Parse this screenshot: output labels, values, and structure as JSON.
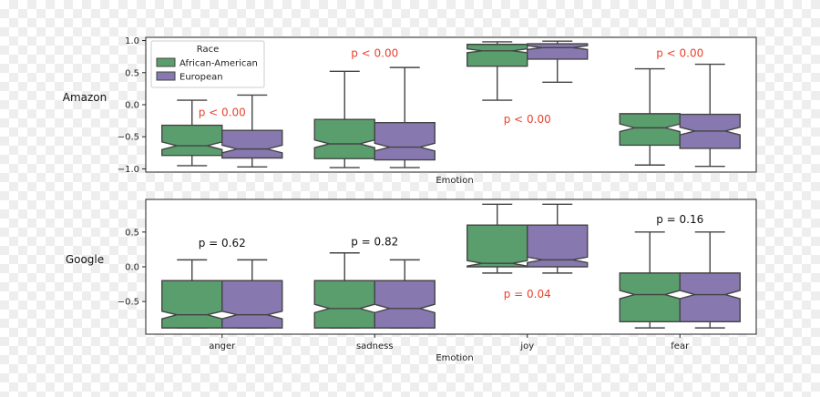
{
  "chart_data": {
    "type": "box",
    "xlabel": "Emotion",
    "categories": [
      "anger",
      "sadness",
      "joy",
      "fear"
    ],
    "legend": {
      "title": "Race",
      "placement": "top-left",
      "entries": [
        "African-American",
        "European"
      ]
    },
    "colors": {
      "African-American": "#5b9e6e",
      "European": "#8878b0",
      "significant": "#e8432e",
      "not_significant": "#111111"
    },
    "panels": [
      {
        "title": "Amazon",
        "ylim": [
          -1.05,
          1.05
        ],
        "yticks": [
          -1.0,
          -0.5,
          0.0,
          0.5,
          1.0
        ],
        "ytick_labels": [
          "−1.0",
          "−0.5",
          "0.0",
          "0.5",
          "1.0"
        ],
        "show_xtick_labels": false,
        "boxes": [
          {
            "category": "anger",
            "series": "African-American",
            "whislo": -0.95,
            "q1": -0.79,
            "med": -0.64,
            "q3": -0.32,
            "whishi": 0.07,
            "notch_lo": -0.7,
            "notch_hi": -0.58
          },
          {
            "category": "anger",
            "series": "European",
            "whislo": -0.97,
            "q1": -0.83,
            "med": -0.69,
            "q3": -0.4,
            "whishi": 0.15,
            "notch_lo": -0.75,
            "notch_hi": -0.63
          },
          {
            "category": "sadness",
            "series": "African-American",
            "whislo": -0.98,
            "q1": -0.84,
            "med": -0.61,
            "q3": -0.23,
            "whishi": 0.52,
            "notch_lo": -0.67,
            "notch_hi": -0.55
          },
          {
            "category": "sadness",
            "series": "European",
            "whislo": -0.98,
            "q1": -0.86,
            "med": -0.66,
            "q3": -0.28,
            "whishi": 0.58,
            "notch_lo": -0.72,
            "notch_hi": -0.6
          },
          {
            "category": "joy",
            "series": "African-American",
            "whislo": 0.07,
            "q1": 0.6,
            "med": 0.84,
            "q3": 0.94,
            "whishi": 0.98,
            "notch_lo": 0.81,
            "notch_hi": 0.87
          },
          {
            "category": "joy",
            "series": "European",
            "whislo": 0.35,
            "q1": 0.71,
            "med": 0.89,
            "q3": 0.95,
            "whishi": 0.99,
            "notch_lo": 0.86,
            "notch_hi": 0.92
          },
          {
            "category": "fear",
            "series": "African-American",
            "whislo": -0.94,
            "q1": -0.63,
            "med": -0.36,
            "q3": -0.14,
            "whishi": 0.56,
            "notch_lo": -0.42,
            "notch_hi": -0.3
          },
          {
            "category": "fear",
            "series": "European",
            "whislo": -0.96,
            "q1": -0.68,
            "med": -0.41,
            "q3": -0.15,
            "whishi": 0.63,
            "notch_lo": -0.47,
            "notch_hi": -0.35
          }
        ],
        "annotations": [
          {
            "category": "anger",
            "text": "p < 0.00",
            "y": -0.12,
            "significant": true
          },
          {
            "category": "sadness",
            "text": "p < 0.00",
            "y": 0.8,
            "significant": true
          },
          {
            "category": "joy",
            "text": "p < 0.00",
            "y": -0.23,
            "significant": true
          },
          {
            "category": "fear",
            "text": "p < 0.00",
            "y": 0.8,
            "significant": true
          }
        ]
      },
      {
        "title": "Google",
        "ylim": [
          -0.97,
          0.97
        ],
        "yticks": [
          -0.5,
          0.0,
          0.5
        ],
        "ytick_labels": [
          "−0.5",
          "0.0",
          "0.5"
        ],
        "show_xtick_labels": true,
        "boxes": [
          {
            "category": "anger",
            "series": "African-American",
            "whislo": -0.88,
            "q1": -0.88,
            "med": -0.69,
            "q3": -0.2,
            "whishi": 0.1,
            "notch_lo": -0.75,
            "notch_hi": -0.64
          },
          {
            "category": "anger",
            "series": "European",
            "whislo": -0.88,
            "q1": -0.88,
            "med": -0.69,
            "q3": -0.2,
            "whishi": 0.1,
            "notch_lo": -0.75,
            "notch_hi": -0.64
          },
          {
            "category": "sadness",
            "series": "African-American",
            "whislo": -0.88,
            "q1": -0.88,
            "med": -0.6,
            "q3": -0.2,
            "whishi": 0.2,
            "notch_lo": -0.66,
            "notch_hi": -0.54
          },
          {
            "category": "sadness",
            "series": "European",
            "whislo": -0.88,
            "q1": -0.88,
            "med": -0.6,
            "q3": -0.2,
            "whishi": 0.1,
            "notch_lo": -0.66,
            "notch_hi": -0.54
          },
          {
            "category": "joy",
            "series": "African-American",
            "whislo": -0.09,
            "q1": 0.0,
            "med": 0.05,
            "q3": 0.6,
            "whishi": 0.9,
            "notch_lo": 0.01,
            "notch_hi": 0.09
          },
          {
            "category": "joy",
            "series": "European",
            "whislo": -0.09,
            "q1": 0.0,
            "med": 0.1,
            "q3": 0.6,
            "whishi": 0.9,
            "notch_lo": 0.06,
            "notch_hi": 0.14
          },
          {
            "category": "fear",
            "series": "African-American",
            "whislo": -0.88,
            "q1": -0.79,
            "med": -0.4,
            "q3": -0.09,
            "whishi": 0.5,
            "notch_lo": -0.46,
            "notch_hi": -0.34
          },
          {
            "category": "fear",
            "series": "European",
            "whislo": -0.88,
            "q1": -0.79,
            "med": -0.4,
            "q3": -0.09,
            "whishi": 0.5,
            "notch_lo": -0.46,
            "notch_hi": -0.34
          }
        ],
        "annotations": [
          {
            "category": "anger",
            "text": "p = 0.62",
            "y": 0.34,
            "significant": false
          },
          {
            "category": "sadness",
            "text": "p = 0.82",
            "y": 0.36,
            "significant": false
          },
          {
            "category": "joy",
            "text": "p = 0.04",
            "y": -0.39,
            "significant": true
          },
          {
            "category": "fear",
            "text": "p = 0.16",
            "y": 0.68,
            "significant": false
          }
        ]
      }
    ]
  }
}
